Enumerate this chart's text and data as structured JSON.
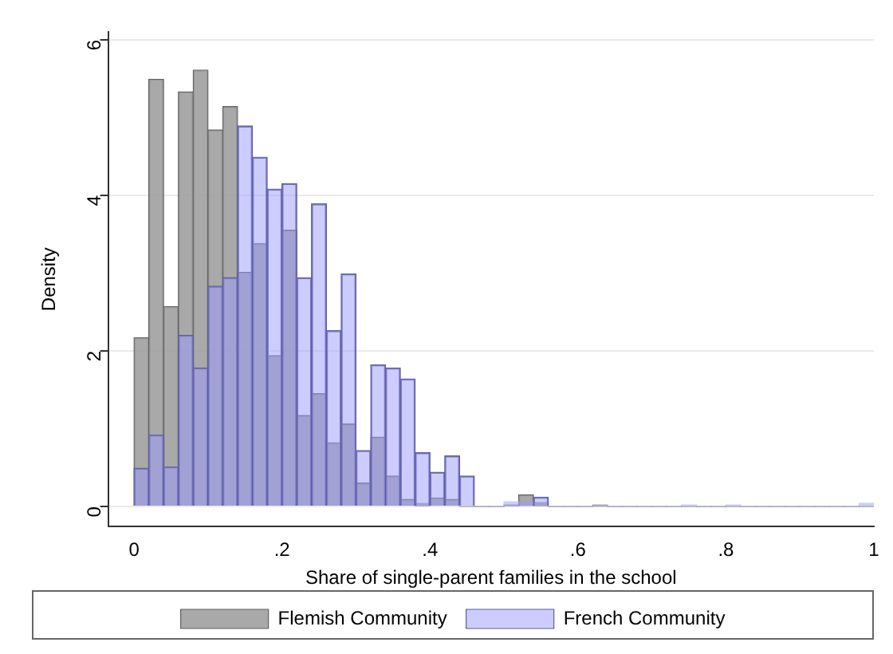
{
  "chart_data": {
    "type": "histogram",
    "xlabel": "Share of single-parent families in the school",
    "ylabel": "Density",
    "bins": [
      0,
      0.02,
      0.04,
      0.06,
      0.08,
      0.1,
      0.12,
      0.14,
      0.16,
      0.18,
      0.2,
      0.22,
      0.24,
      0.26,
      0.28,
      0.3,
      0.32,
      0.34,
      0.36,
      0.38,
      0.4,
      0.42,
      0.44,
      0.46,
      0.48,
      0.5,
      0.52,
      0.54,
      0.56,
      0.58,
      0.6,
      0.62,
      0.64,
      0.66,
      0.68,
      0.7,
      0.72,
      0.74,
      0.76,
      0.78,
      0.8,
      0.82,
      0.84,
      0.86,
      0.88,
      0.9,
      0.92,
      0.94,
      0.96,
      0.98,
      1
    ],
    "series": [
      {
        "name": "Flemish Community",
        "color": "#a0a0a0",
        "values": [
          2.17,
          5.49,
          2.57,
          5.33,
          5.61,
          4.84,
          5.14,
          3.01,
          3.38,
          1.94,
          3.55,
          1.17,
          1.45,
          0.82,
          1.06,
          0.3,
          0.89,
          0.39,
          0.09,
          0.04,
          0.11,
          0.09,
          0,
          0,
          0,
          0.02,
          0.15,
          0.05,
          0,
          0,
          0,
          0.02,
          0,
          0,
          0,
          0,
          0,
          0,
          0,
          0,
          0,
          0,
          0,
          0,
          0,
          0,
          0,
          0,
          0,
          0
        ]
      },
      {
        "name": "French Community",
        "color": "#9999ff",
        "values": [
          0.49,
          0.92,
          0.51,
          2.2,
          1.78,
          2.83,
          2.94,
          4.89,
          4.49,
          4.08,
          4.15,
          2.94,
          3.89,
          2.26,
          2.99,
          0.72,
          1.82,
          1.78,
          1.64,
          0.69,
          0.44,
          0.65,
          0.39,
          0,
          0,
          0.06,
          0.06,
          0.12,
          0,
          0,
          0,
          0,
          0,
          0,
          0,
          0,
          0,
          0.02,
          0,
          0,
          0.02,
          0,
          0,
          0,
          0,
          0,
          0,
          0,
          0,
          0.04
        ]
      }
    ],
    "xlim": [
      -0.035,
      1.0
    ],
    "xticks": [
      {
        "value": 0,
        "label": "0"
      },
      {
        "value": 0.2,
        "label": ".2"
      },
      {
        "value": 0.4,
        "label": ".4"
      },
      {
        "value": 0.6,
        "label": ".6"
      },
      {
        "value": 0.8,
        "label": ".8"
      },
      {
        "value": 1,
        "label": "1"
      }
    ],
    "ylim": [
      -0.26,
      6.1
    ],
    "yticks": [
      0,
      2,
      4,
      6
    ],
    "grid": "y",
    "legend": "bottom"
  }
}
